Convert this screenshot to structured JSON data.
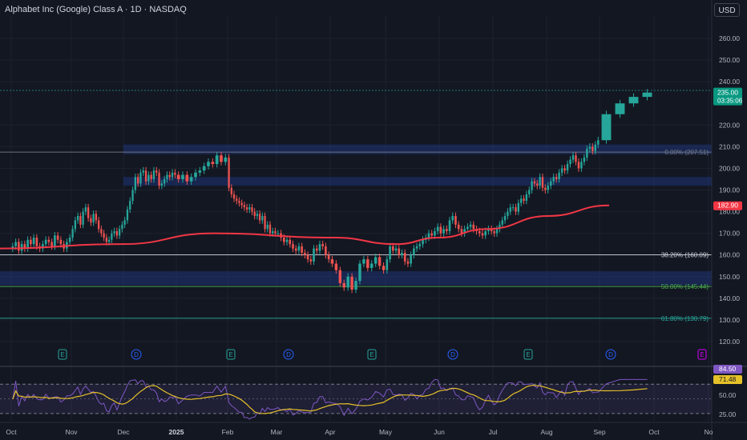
{
  "header": {
    "symbol_title": "Alphabet Inc (Google) Class A · 1D · NASDAQ",
    "currency_button": "USD"
  },
  "colors": {
    "background": "#131722",
    "up": "#26a69a",
    "down": "#ef5350",
    "ma": "#f23645",
    "rsi": "#7e57c2",
    "rsi_ma": "#e6c229",
    "zone": "#1e3a8a",
    "price_badge": "#089981",
    "ma_badge": "#f23645"
  },
  "chart_data": {
    "type": "candlestick",
    "x_ticks": [
      "Oct",
      "Nov",
      "Dec",
      "2025",
      "Feb",
      "Mar",
      "Apr",
      "May",
      "Jun",
      "Jul",
      "Aug",
      "Sep",
      "Oct",
      "No"
    ],
    "y_ticks": [
      "260.00",
      "250.00",
      "240.00",
      "220.00",
      "210.00",
      "200.00",
      "190.00",
      "180.00",
      "170.00",
      "160.00",
      "150.00",
      "140.00",
      "130.00",
      "120.00"
    ],
    "price_badges": [
      {
        "label": "235.00",
        "sublabel": "03:35:06",
        "value": 235.0
      },
      {
        "label": "182.90",
        "value": 182.9
      }
    ],
    "horizontal_levels": [
      {
        "label": "",
        "value": 236.0
      },
      {
        "label": "0.00% (207.51)",
        "value": 207.51
      },
      {
        "label": "38.20% (160.09)",
        "value": 160.09
      },
      {
        "label": "50.00% (145.44)",
        "value": 145.44
      },
      {
        "label": "61.80% (130.79)",
        "value": 130.79
      }
    ],
    "zones": [
      {
        "from_month": "Dec",
        "low": 206.5,
        "high": 211.0
      },
      {
        "from_month": "Dec",
        "low": 192.0,
        "high": 196.0
      },
      {
        "from_month": "Oct",
        "low": 146.0,
        "high": 152.5
      }
    ],
    "event_markers": [
      {
        "type": "E",
        "month": "Oct"
      },
      {
        "type": "D",
        "month": "Dec"
      },
      {
        "type": "E",
        "month": "Feb"
      },
      {
        "type": "D",
        "month": "Mar"
      },
      {
        "type": "E",
        "month": "Apr"
      },
      {
        "type": "D",
        "month": "Jun"
      },
      {
        "type": "E",
        "month": "Jul"
      },
      {
        "type": "D",
        "month": "Sep"
      },
      {
        "type": "E",
        "month": "Oct"
      }
    ],
    "price_series": {
      "months": [
        "Oct",
        "Nov",
        "Dec",
        "2025",
        "Feb",
        "Mar",
        "Apr",
        "May",
        "Jun",
        "Jul",
        "Aug",
        "Sep"
      ],
      "closes": [
        [
          164,
          166,
          162,
          165,
          163,
          167,
          165,
          168,
          164,
          163,
          165,
          167,
          166,
          164,
          169,
          167,
          165,
          163,
          166,
          168
        ],
        [
          172,
          176,
          178,
          174,
          180,
          182,
          177,
          175,
          179,
          176,
          172,
          170,
          168,
          166,
          167,
          170,
          171,
          169,
          172,
          174
        ],
        [
          176,
          181,
          185,
          190,
          196,
          193,
          198,
          199,
          194,
          197,
          195,
          199,
          198,
          192,
          193,
          195,
          197,
          196,
          198,
          197
        ],
        [
          195,
          197,
          194,
          196,
          198,
          199,
          201,
          203,
          202,
          206,
          203,
          205
        ],
        [
          191,
          188,
          186,
          185,
          184,
          183,
          182,
          181,
          182,
          180,
          178,
          179,
          176,
          178,
          172,
          174,
          170,
          171,
          170
        ],
        [
          170,
          168,
          166,
          167,
          165,
          163,
          162,
          164,
          161,
          160,
          158,
          157,
          163,
          162,
          165,
          164,
          160,
          158
        ],
        [
          156,
          153,
          147,
          145,
          150,
          144,
          148,
          156,
          158,
          154,
          156,
          159,
          155,
          153
        ],
        [
          158,
          164,
          162,
          163,
          160,
          161,
          157,
          156,
          160,
          163,
          164,
          165,
          167,
          168,
          170,
          169,
          171,
          173
        ],
        [
          170,
          172,
          171,
          176,
          178,
          174,
          172,
          170,
          172,
          173,
          174,
          172,
          171,
          170,
          169,
          171,
          172,
          171
        ],
        [
          170,
          172,
          174,
          176,
          178,
          180,
          182,
          182,
          180,
          184,
          186,
          185,
          188,
          190,
          194,
          193,
          192,
          196,
          191,
          190
        ],
        [
          192,
          194,
          196,
          195,
          198,
          200,
          199,
          202,
          204,
          206,
          203,
          200,
          203,
          205,
          209,
          210,
          208,
          211,
          213
        ],
        [
          225,
          230,
          233,
          235
        ]
      ]
    },
    "moving_average": {
      "name": "",
      "knots": [
        [
          0,
          163
        ],
        [
          0.2,
          165
        ],
        [
          0.35,
          170
        ],
        [
          0.55,
          168
        ],
        [
          0.65,
          165
        ],
        [
          0.72,
          168
        ],
        [
          0.8,
          172
        ],
        [
          0.9,
          178
        ],
        [
          1.0,
          182.9
        ]
      ]
    },
    "rsi_panel": {
      "y_ticks": [
        "84.50",
        "71.48",
        "50.00",
        "25.00"
      ],
      "levels": [
        70,
        30
      ],
      "current_rsi": 84.5,
      "current_rsi_ma": 71.48
    }
  }
}
